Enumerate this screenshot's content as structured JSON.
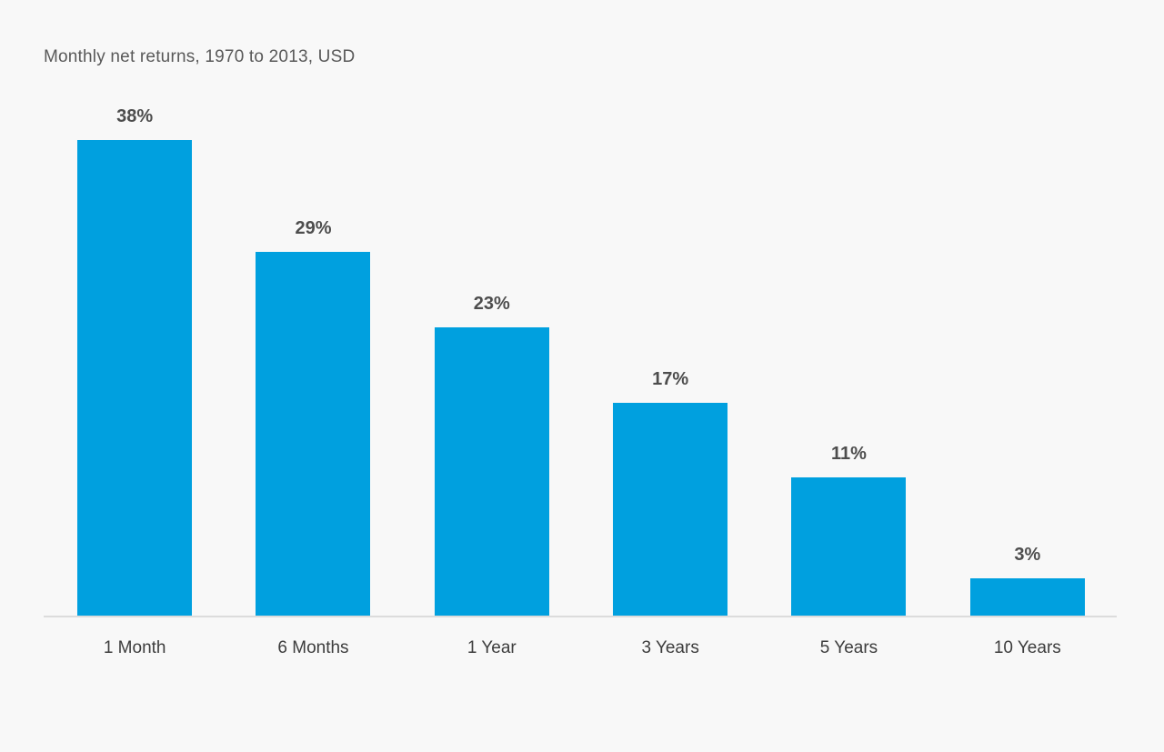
{
  "title": "Monthly net returns, 1970 to 2013, USD",
  "colors": {
    "background": "#f8f8f8",
    "bar": "#00A0DF",
    "axis_line": "#dcdcdc",
    "title_text": "#595959",
    "value_label_text": "#4d4d4d",
    "category_label_text": "#3d3d3d"
  },
  "chart_data": {
    "type": "bar",
    "title": "Monthly net returns, 1970 to 2013, USD",
    "categories": [
      "1 Month",
      "6 Months",
      "1 Year",
      "3 Years",
      "5 Years",
      "10 Years"
    ],
    "values": [
      38,
      29,
      23,
      17,
      11,
      3
    ],
    "value_labels": [
      "38%",
      "29%",
      "23%",
      "17%",
      "11%",
      "3%"
    ],
    "xlabel": "",
    "ylabel": "",
    "ylim": [
      0,
      40
    ],
    "grid": false,
    "legend": false,
    "bar_color": "#00A0DF",
    "unit": "percent"
  }
}
